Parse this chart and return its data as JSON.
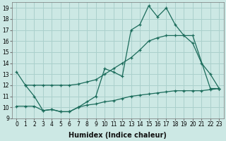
{
  "xlabel": "Humidex (Indice chaleur)",
  "xlim": [
    -0.5,
    23.5
  ],
  "ylim": [
    9,
    19.5
  ],
  "background_color": "#cce8e4",
  "grid_color": "#aad0cc",
  "line_color": "#1a6b5a",
  "line1_x": [
    0,
    1,
    2,
    3,
    4,
    5,
    6,
    7,
    8,
    9,
    10,
    11,
    12,
    13,
    14,
    15,
    16,
    17,
    18,
    19,
    20,
    21,
    22,
    23
  ],
  "line1_y": [
    13.2,
    12.0,
    11.0,
    9.7,
    9.8,
    9.6,
    9.6,
    10.0,
    10.5,
    11.0,
    13.5,
    13.2,
    12.8,
    17.0,
    17.5,
    19.2,
    18.2,
    19.0,
    17.5,
    16.5,
    15.8,
    14.0,
    13.0,
    11.7
  ],
  "line2_x": [
    1,
    2,
    3,
    4,
    5,
    6,
    7,
    8,
    9,
    10,
    11,
    12,
    13,
    14,
    15,
    16,
    17,
    18,
    19,
    20,
    22,
    23
  ],
  "line2_y": [
    12.0,
    12.0,
    12.0,
    12.0,
    12.0,
    12.0,
    12.1,
    12.3,
    12.5,
    13.0,
    13.5,
    14.0,
    14.5,
    15.2,
    16.0,
    16.3,
    16.5,
    16.5,
    16.5,
    16.5,
    11.7,
    11.7
  ],
  "line3_x": [
    0,
    1,
    2,
    3,
    4,
    5,
    6,
    7,
    8,
    9,
    10,
    11,
    12,
    13,
    14,
    15,
    16,
    17,
    18,
    19,
    20,
    21,
    22,
    23
  ],
  "line3_y": [
    10.1,
    10.1,
    10.1,
    9.7,
    9.8,
    9.6,
    9.6,
    10.0,
    10.2,
    10.3,
    10.5,
    10.6,
    10.8,
    11.0,
    11.1,
    11.2,
    11.3,
    11.4,
    11.5,
    11.5,
    11.5,
    11.5,
    11.6,
    11.7
  ],
  "xticks": [
    0,
    1,
    2,
    3,
    4,
    5,
    6,
    7,
    8,
    9,
    10,
    11,
    12,
    13,
    14,
    15,
    16,
    17,
    18,
    19,
    20,
    21,
    22,
    23
  ],
  "yticks": [
    9,
    10,
    11,
    12,
    13,
    14,
    15,
    16,
    17,
    18,
    19
  ],
  "tick_fontsize": 5.5,
  "label_fontsize": 7.0
}
